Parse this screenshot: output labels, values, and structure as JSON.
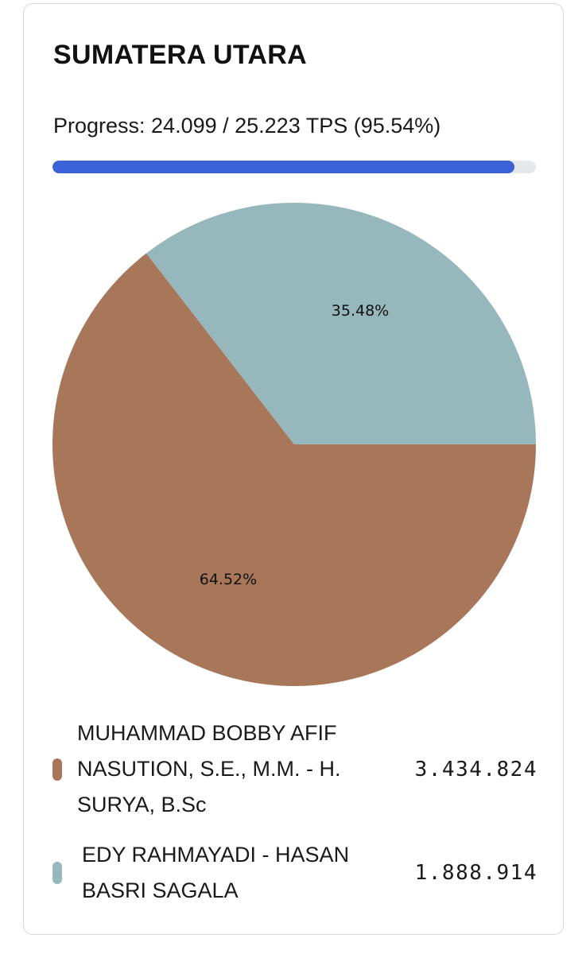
{
  "card": {
    "title": "SUMATERA UTARA",
    "progress_text": "Progress: 24.099 / 25.223 TPS (95.54%)",
    "progress_fraction": 0.9554
  },
  "chart_data": {
    "type": "pie",
    "slices": [
      {
        "label": "MUHAMMAD BOBBY AFIF NASUTION, S.E., M.M. - H. SURYA, B.Sc",
        "value": 3434824,
        "display_value": "3.434.824",
        "percent_label": "64.52%",
        "color": "#a8775a"
      },
      {
        "label": "EDY RAHMAYADI - HASAN BASRI SAGALA",
        "value": 1888914,
        "display_value": "1.888.914",
        "percent_label": "35.48%",
        "color": "#96b7bc"
      }
    ]
  }
}
